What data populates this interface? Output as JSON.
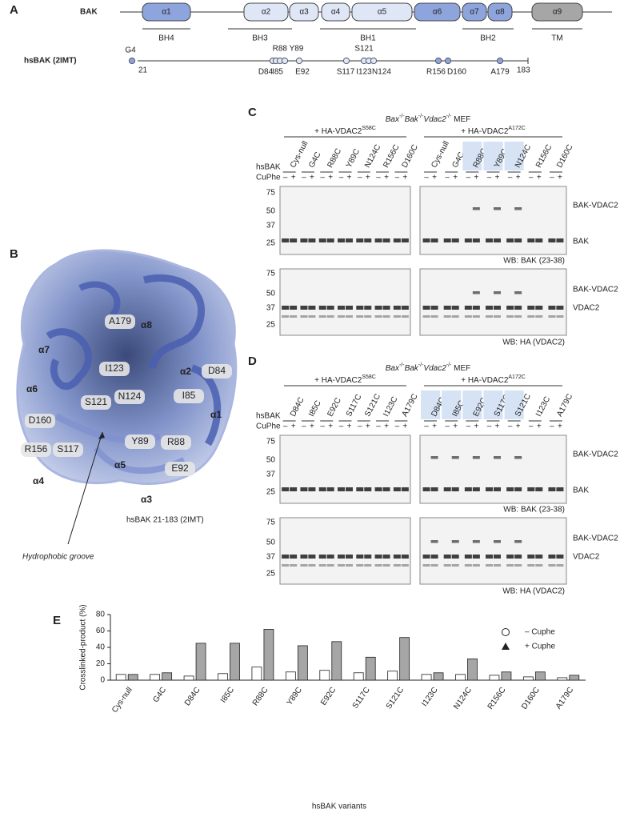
{
  "panel_a": {
    "label": "A",
    "protein": "BAK",
    "domains": [
      "α1",
      "α2",
      "α3",
      "α4",
      "α5",
      "α6",
      "α7",
      "α8",
      "α9"
    ],
    "regions": [
      "BH4",
      "BH3",
      "BH1",
      "BH2",
      "TM"
    ],
    "construct": "hsBAK (2IMT)",
    "start": "21",
    "end": "183",
    "residues_above": [
      "G4",
      "R88 Y89",
      "S121"
    ],
    "residues_below": [
      "D84",
      "I85",
      "E92",
      "S117",
      "I123",
      "N124",
      "R156",
      "D160",
      "A179"
    ]
  },
  "panel_b": {
    "label": "B",
    "labels": [
      "A179",
      "α8",
      "α7",
      "I123",
      "α2",
      "D84",
      "α6",
      "N124",
      "S121",
      "I85",
      "D160",
      "α1",
      "R156",
      "Y89",
      "R88",
      "S117",
      "α5",
      "E92",
      "α4",
      "α3"
    ],
    "caption": "hsBAK 21-183 (2IMT)",
    "groove": "Hydrophobic groove"
  },
  "panel_c": {
    "label": "C",
    "title": [
      "Bax",
      "-/-",
      "Bak",
      "-/-",
      "Vdac2",
      "-/-",
      " MEF"
    ],
    "groups": [
      [
        "+ HA-VDAC2",
        "S58C"
      ],
      [
        "+ HA-VDAC2",
        "A172C"
      ]
    ],
    "row_label": "hsBAK",
    "cuphe_label": "CuPhe",
    "cuphe_signs": [
      "–",
      "+"
    ],
    "lanes": [
      "Cys-null",
      "G4C",
      "R88C",
      "Y89C",
      "N124C",
      "R156C",
      "D160C"
    ],
    "highlight_right": [
      false,
      false,
      true,
      true,
      true,
      false,
      false
    ],
    "markers_top": [
      "75",
      "50",
      "37",
      "25"
    ],
    "markers_bottom": [
      "75",
      "50",
      "37",
      "25"
    ],
    "top_bands": [
      "BAK-VDAC2",
      "BAK"
    ],
    "top_wb": "WB: BAK (23-38)",
    "bottom_bands": [
      "BAK-VDAC2",
      "VDAC2"
    ],
    "bottom_wb": "WB: HA (VDAC2)"
  },
  "panel_d": {
    "label": "D",
    "title": [
      "Bax",
      "-/-",
      "Bak",
      "-/-",
      "Vdac2",
      "-/-",
      " MEF"
    ],
    "groups": [
      [
        "+ HA-VDAC2",
        "S58C"
      ],
      [
        "+ HA-VDAC2",
        "A172C"
      ]
    ],
    "row_label": "hsBAK",
    "cuphe_label": "CuPhe",
    "cuphe_signs": [
      "–",
      "+"
    ],
    "lanes": [
      "D84C",
      "I85C",
      "E92C",
      "S117C",
      "S121C",
      "I123C",
      "A179C"
    ],
    "highlight_right": [
      true,
      true,
      true,
      true,
      true,
      false,
      false
    ],
    "markers_top": [
      "75",
      "50",
      "37",
      "25"
    ],
    "markers_bottom": [
      "75",
      "50",
      "37",
      "25"
    ],
    "top_bands": [
      "BAK-VDAC2",
      "BAK"
    ],
    "top_wb": "WB: BAK (23-38)",
    "bottom_bands": [
      "BAK-VDAC2",
      "VDAC2"
    ],
    "bottom_wb": "WB: HA (VDAC2)"
  },
  "chart_data": {
    "type": "bar",
    "label": "E",
    "y_label": "Crosslinked-product (%)",
    "x_label": "hsBAK variants",
    "categories": [
      "Cys-null",
      "G4C",
      "D84C",
      "I85C",
      "R88C",
      "Y89C",
      "E92C",
      "S117C",
      "S121C",
      "I123C",
      "N124C",
      "R156C",
      "D160C",
      "A179C"
    ],
    "series": [
      {
        "name": "– Cuphe",
        "color": "#ffffff",
        "marker": "circle",
        "values": [
          7,
          7,
          5,
          8,
          16,
          10,
          12,
          9,
          11,
          7,
          7,
          6,
          4,
          3
        ]
      },
      {
        "name": "+ Cuphe",
        "color": "#a6a6a6",
        "marker": "triangle",
        "values": [
          7,
          9,
          45,
          45,
          62,
          42,
          47,
          28,
          52,
          9,
          26,
          10,
          10,
          6
        ]
      }
    ],
    "ylim": [
      0,
      80
    ],
    "yticks": [
      0,
      20,
      40,
      60,
      80
    ],
    "legend": "top-right"
  }
}
